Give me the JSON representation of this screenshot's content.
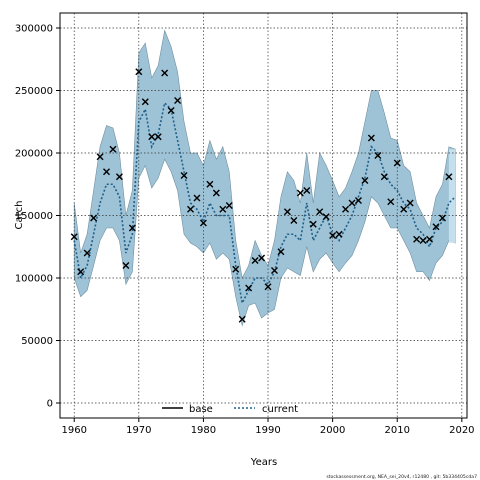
{
  "chart_data": {
    "type": "line",
    "title": "",
    "xlabel": "Years",
    "ylabel": "Catch",
    "xlim": [
      1957.8,
      2020.8
    ],
    "ylim": [
      -12000,
      312000
    ],
    "xticks": [
      1960,
      1970,
      1980,
      1990,
      2000,
      2010,
      2020
    ],
    "yticks": [
      0,
      50000,
      100000,
      150000,
      200000,
      250000,
      300000
    ],
    "grid": true,
    "legend": {
      "position": "bottom-center",
      "entries": [
        "base",
        "current"
      ]
    },
    "x": [
      1960,
      1961,
      1962,
      1963,
      1964,
      1965,
      1966,
      1967,
      1968,
      1969,
      1970,
      1971,
      1972,
      1973,
      1974,
      1975,
      1976,
      1977,
      1978,
      1979,
      1980,
      1981,
      1982,
      1983,
      1984,
      1985,
      1986,
      1987,
      1988,
      1989,
      1990,
      1991,
      1992,
      1993,
      1994,
      1995,
      1996,
      1997,
      1998,
      1999,
      2000,
      2001,
      2002,
      2003,
      2004,
      2005,
      2006,
      2007,
      2008,
      2009,
      2010,
      2011,
      2012,
      2013,
      2014,
      2015,
      2016,
      2017,
      2018,
      2019
    ],
    "series": [
      {
        "name": "base",
        "color": "#000000",
        "style": "solid",
        "values": [
          null,
          null,
          null,
          null,
          null,
          null,
          null,
          null,
          null,
          null,
          null,
          null,
          null,
          null,
          null,
          null,
          null,
          null,
          null,
          null,
          null,
          null,
          null,
          null,
          null,
          null,
          null,
          null,
          null,
          null,
          null,
          null,
          null,
          null,
          null,
          null,
          null,
          null,
          null,
          null,
          null,
          null,
          null,
          null,
          null,
          null,
          null,
          null,
          null,
          null,
          null,
          null,
          null,
          null,
          null,
          null,
          null,
          null,
          null,
          null
        ]
      },
      {
        "name": "current",
        "color": "#1f5f8b",
        "style": "dotted",
        "values": [
          130000,
          100000,
          110000,
          135000,
          160000,
          175000,
          175000,
          165000,
          120000,
          135000,
          225000,
          235000,
          205000,
          215000,
          240000,
          235000,
          210000,
          185000,
          160000,
          155000,
          145000,
          160000,
          150000,
          150000,
          150000,
          110000,
          80000,
          90000,
          100000,
          100000,
          95000,
          105000,
          125000,
          135000,
          135000,
          130000,
          160000,
          130000,
          140000,
          150000,
          135000,
          130000,
          140000,
          150000,
          165000,
          180000,
          205000,
          200000,
          185000,
          175000,
          170000,
          160000,
          155000,
          140000,
          135000,
          125000,
          140000,
          145000,
          160000,
          165000
        ]
      }
    ],
    "uncertainty_band": {
      "color": "#9fc3d6",
      "lower": [
        100000,
        85000,
        90000,
        110000,
        130000,
        140000,
        140000,
        130000,
        95000,
        105000,
        180000,
        190000,
        172000,
        180000,
        195000,
        185000,
        170000,
        135000,
        128000,
        125000,
        120000,
        128000,
        115000,
        120000,
        115000,
        85000,
        62000,
        78000,
        80000,
        68000,
        72000,
        75000,
        100000,
        108000,
        105000,
        102000,
        125000,
        105000,
        115000,
        120000,
        112000,
        105000,
        112000,
        118000,
        130000,
        145000,
        165000,
        160000,
        150000,
        140000,
        140000,
        130000,
        120000,
        105000,
        105000,
        98000,
        112000,
        118000,
        130000,
        128000
      ],
      "upper": [
        160000,
        120000,
        135000,
        170000,
        205000,
        222000,
        220000,
        200000,
        150000,
        170000,
        280000,
        288000,
        260000,
        270000,
        298000,
        285000,
        265000,
        225000,
        200000,
        200000,
        190000,
        210000,
        195000,
        205000,
        185000,
        130000,
        100000,
        110000,
        130000,
        118000,
        110000,
        130000,
        165000,
        185000,
        178000,
        160000,
        200000,
        160000,
        200000,
        190000,
        178000,
        165000,
        172000,
        185000,
        200000,
        225000,
        250000,
        250000,
        232000,
        212000,
        210000,
        190000,
        185000,
        160000,
        150000,
        140000,
        165000,
        175000,
        205000,
        203000
      ]
    },
    "observations": {
      "marker": "x",
      "x": [
        1960,
        1961,
        1962,
        1963,
        1964,
        1965,
        1966,
        1967,
        1968,
        1969,
        1970,
        1971,
        1972,
        1973,
        1974,
        1975,
        1976,
        1977,
        1978,
        1979,
        1980,
        1981,
        1982,
        1983,
        1984,
        1985,
        1986,
        1987,
        1988,
        1989,
        1990,
        1991,
        1992,
        1993,
        1994,
        1995,
        1996,
        1997,
        1998,
        1999,
        2000,
        2001,
        2002,
        2003,
        2004,
        2005,
        2006,
        2007,
        2008,
        2009,
        2010,
        2011,
        2012,
        2013,
        2014,
        2015,
        2016,
        2017,
        2018
      ],
      "y": [
        133000,
        105000,
        120000,
        148000,
        197000,
        185000,
        203000,
        181000,
        110000,
        140000,
        265000,
        241000,
        213000,
        213000,
        264000,
        234000,
        242000,
        182000,
        155000,
        164000,
        144000,
        175000,
        168000,
        155000,
        158000,
        107000,
        67000,
        92000,
        114000,
        116000,
        93000,
        106000,
        121000,
        153000,
        146000,
        168000,
        170000,
        143000,
        153000,
        149000,
        134000,
        135000,
        155000,
        160000,
        162000,
        178000,
        212000,
        198000,
        181000,
        161000,
        192000,
        155000,
        160000,
        131000,
        130000,
        131000,
        141000,
        148000,
        181000
      ]
    }
  },
  "footer_note": "stockassessment.org, NEA_sei_20v4, r12480 , git: 5b334405cda7"
}
